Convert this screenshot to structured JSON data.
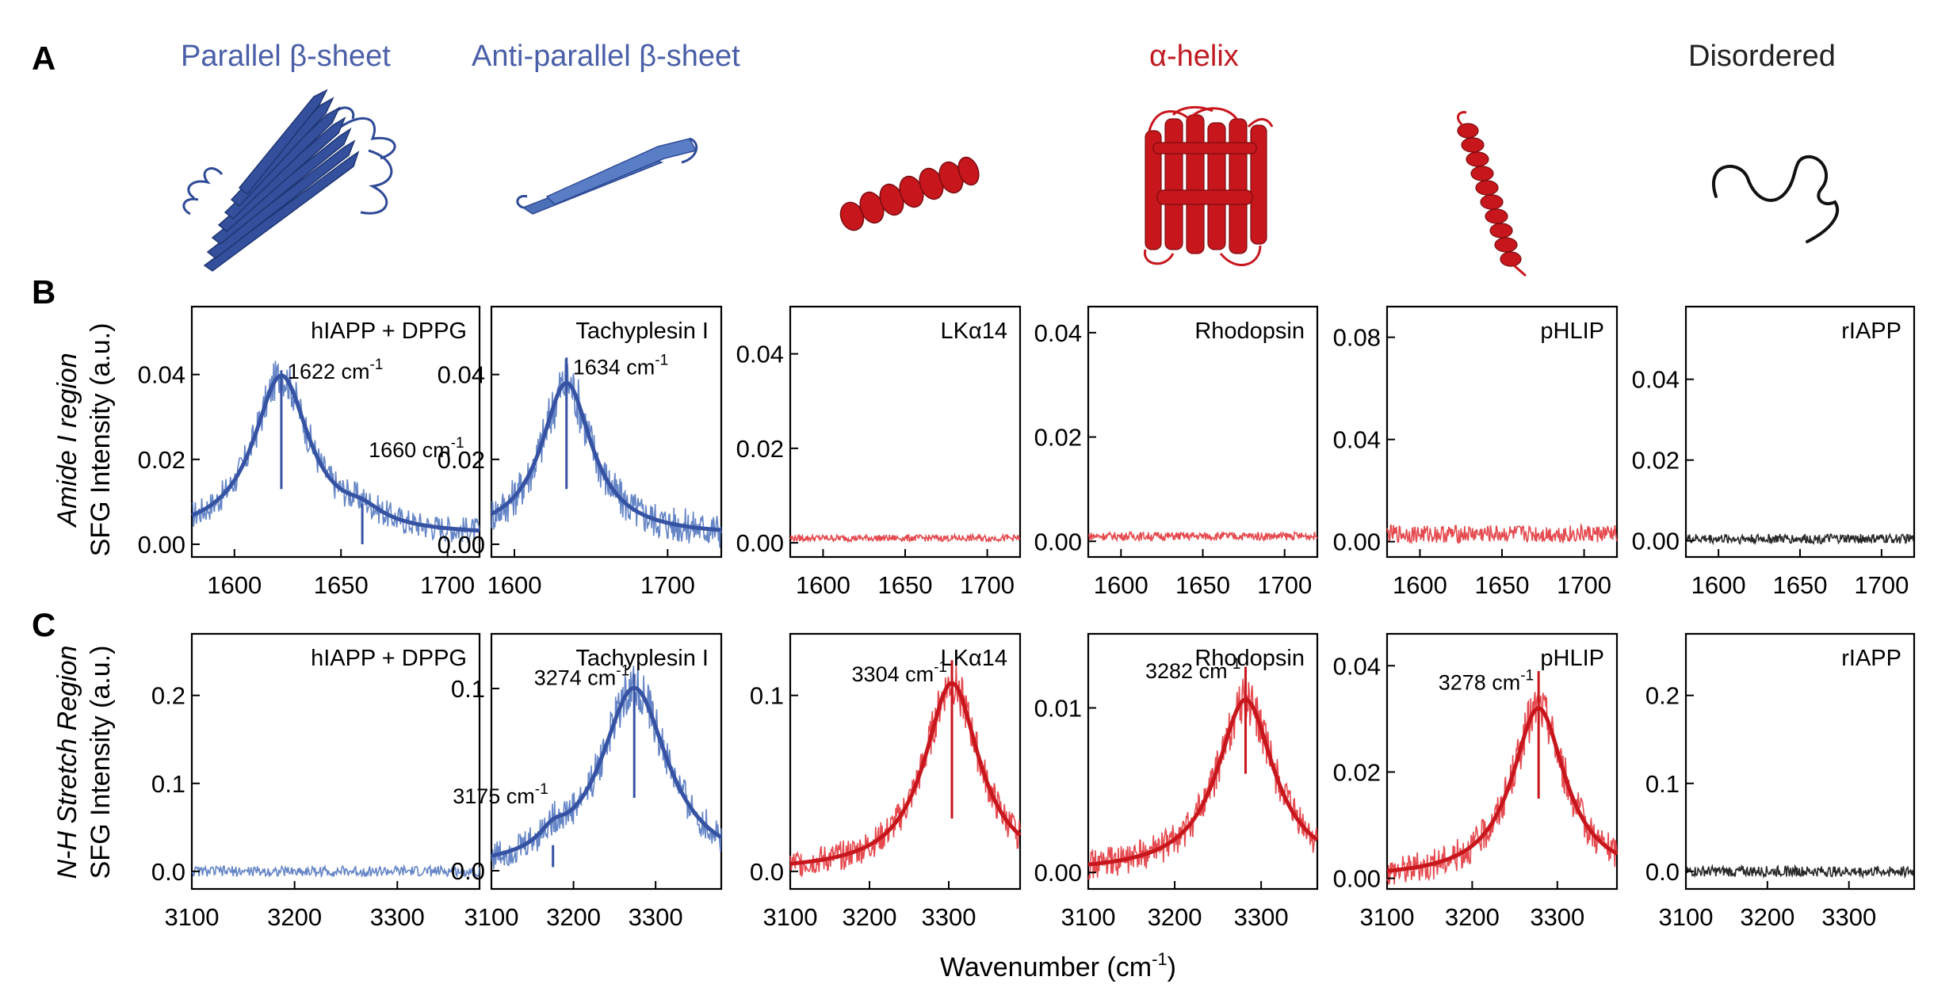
{
  "panels": {
    "a": "A",
    "b": "B",
    "c": "C"
  },
  "colors": {
    "blue": "#3653a3",
    "light_blue": "#5478c0",
    "red": "#c8161d",
    "light_red": "#e2363c",
    "black": "#111111",
    "title_blue": "#4a5fa8",
    "title_red": "#c01a22",
    "title_black": "#222222"
  },
  "structures": {
    "titles": [
      "Parallel β-sheet",
      "Anti-parallel β-sheet",
      "α-helix",
      "Disordered"
    ]
  },
  "row_labels": {
    "b_italic": "Amide I region",
    "b_axis": "SFG Intensity (a.u.)",
    "c_italic": "N-H Stretch Region",
    "c_axis": "SFG Intensity (a.u.)"
  },
  "xlabel": {
    "main": "Wavenumber (cm",
    "sup": "-1",
    "close": ")"
  },
  "chart_data": [
    {
      "type": "line",
      "row": "B",
      "label": "hIAPP + DPPG",
      "color": "blue",
      "xlim": [
        1580,
        1715
      ],
      "ylim": [
        -0.003,
        0.056
      ],
      "xticks": [
        1600,
        1650,
        1700
      ],
      "yticks": [
        0.0,
        0.02,
        0.04
      ],
      "decimals": 2,
      "peaks": [
        {
          "x": 1622,
          "h": 0.0375,
          "w": 16
        },
        {
          "x": 1660,
          "h": 0.003,
          "w": 12
        }
      ],
      "baseline": 0.002,
      "noise": 0.003,
      "annotations": [
        {
          "x": 1622,
          "text": "1622 cm",
          "sup": "-1",
          "ytop": 0.041,
          "ybot": 0.013,
          "labely": 0.039
        },
        {
          "x": 1660,
          "text": "1660 cm",
          "sup": "-1",
          "ytop": 0.0095,
          "ybot": 0.0,
          "labely": 0.0205
        }
      ]
    },
    {
      "type": "line",
      "row": "B",
      "label": "Tachyplesin I",
      "color": "blue",
      "xlim": [
        1585,
        1735
      ],
      "ylim": [
        -0.003,
        0.056
      ],
      "xticks": [
        1600,
        1700
      ],
      "yticks": [
        0.0,
        0.02,
        0.04
      ],
      "decimals": 2,
      "peaks": [
        {
          "x": 1634,
          "h": 0.036,
          "w": 20
        }
      ],
      "baseline": 0.002,
      "noise": 0.004,
      "annotations": [
        {
          "x": 1634,
          "text": "1634 cm",
          "sup": "-1",
          "ytop": 0.044,
          "ybot": 0.013,
          "labely": 0.04
        }
      ]
    },
    {
      "type": "line",
      "row": "B",
      "label": "LKα14",
      "color": "red",
      "xlim": [
        1580,
        1720
      ],
      "ylim": [
        -0.003,
        0.05
      ],
      "xticks": [
        1600,
        1650,
        1700
      ],
      "yticks": [
        0.0,
        0.02,
        0.04
      ],
      "decimals": 2,
      "peaks": [],
      "baseline": 0.001,
      "noise": 0.0007,
      "annotations": []
    },
    {
      "type": "line",
      "row": "B",
      "label": "Rhodopsin",
      "color": "red",
      "xlim": [
        1580,
        1720
      ],
      "ylim": [
        -0.003,
        0.045
      ],
      "xticks": [
        1600,
        1650,
        1700
      ],
      "yticks": [
        0.0,
        0.02,
        0.04
      ],
      "decimals": 2,
      "peaks": [],
      "baseline": 0.001,
      "noise": 0.0008,
      "annotations": []
    },
    {
      "type": "line",
      "row": "B",
      "label": "pHLIP",
      "color": "red",
      "xlim": [
        1580,
        1720
      ],
      "ylim": [
        -0.006,
        0.092
      ],
      "xticks": [
        1600,
        1650,
        1700
      ],
      "yticks": [
        0.0,
        0.04,
        0.08
      ],
      "decimals": 2,
      "peaks": [],
      "baseline": 0.003,
      "noise": 0.0035,
      "annotations": []
    },
    {
      "type": "line",
      "row": "B",
      "label": "rIAPP",
      "color": "black",
      "xlim": [
        1580,
        1720
      ],
      "ylim": [
        -0.004,
        0.058
      ],
      "xticks": [
        1600,
        1650,
        1700
      ],
      "yticks": [
        0.0,
        0.02,
        0.04
      ],
      "decimals": 2,
      "peaks": [],
      "baseline": 0.0005,
      "noise": 0.0012,
      "annotations": []
    },
    {
      "type": "line",
      "row": "C",
      "label": "hIAPP + DPPG",
      "color": "blue",
      "xlim": [
        3100,
        3380
      ],
      "ylim": [
        -0.02,
        0.27
      ],
      "xticks": [
        3100,
        3200,
        3300
      ],
      "yticks": [
        0.0,
        0.1,
        0.2
      ],
      "decimals": 1,
      "peaks": [],
      "baseline": 0.0,
      "noise": 0.006,
      "annotations": []
    },
    {
      "type": "line",
      "row": "C",
      "label": "Tachyplesin I",
      "color": "blue",
      "xlim": [
        3100,
        3380
      ],
      "ylim": [
        -0.01,
        0.13
      ],
      "xticks": [
        3100,
        3200,
        3300
      ],
      "yticks": [
        0.0,
        0.1
      ],
      "decimals": 1,
      "peaks": [
        {
          "x": 3274,
          "h": 0.1,
          "w": 50
        },
        {
          "x": 3175,
          "h": 0.008,
          "w": 20
        }
      ],
      "baseline": 0.0,
      "noise": 0.008,
      "annotations": [
        {
          "x": 3274,
          "text": "3274 cm",
          "sup": "-1",
          "ytop": 0.108,
          "ybot": 0.04,
          "labely": 0.102
        },
        {
          "x": 3175,
          "text": "3175 cm",
          "sup": "-1",
          "ytop": 0.014,
          "ybot": 0.002,
          "labely": 0.037
        }
      ]
    },
    {
      "type": "line",
      "row": "C",
      "label": "LKα14",
      "color": "red",
      "xlim": [
        3100,
        3390
      ],
      "ylim": [
        -0.01,
        0.135
      ],
      "xticks": [
        3100,
        3200,
        3300
      ],
      "yticks": [
        0.0,
        0.1
      ],
      "decimals": 1,
      "peaks": [
        {
          "x": 3304,
          "h": 0.107,
          "w": 42
        }
      ],
      "baseline": 0.0,
      "noise": 0.008,
      "annotations": [
        {
          "x": 3304,
          "text": "3304 cm",
          "sup": "-1",
          "ytop": 0.12,
          "ybot": 0.03,
          "labely": 0.108
        }
      ]
    },
    {
      "type": "line",
      "row": "C",
      "label": "Rhodopsin",
      "color": "red",
      "xlim": [
        3100,
        3365
      ],
      "ylim": [
        -0.001,
        0.0145
      ],
      "xticks": [
        3100,
        3200,
        3300
      ],
      "yticks": [
        0.0,
        0.01
      ],
      "decimals": 2,
      "peaks": [
        {
          "x": 3282,
          "h": 0.0105,
          "w": 40
        }
      ],
      "baseline": 0.0,
      "noise": 0.0009,
      "annotations": [
        {
          "x": 3282,
          "text": "3282 cm",
          "sup": "-1",
          "ytop": 0.0125,
          "ybot": 0.006,
          "labely": 0.0118
        }
      ]
    },
    {
      "type": "line",
      "row": "C",
      "label": "pHLIP",
      "color": "red",
      "xlim": [
        3100,
        3370
      ],
      "ylim": [
        -0.002,
        0.046
      ],
      "xticks": [
        3100,
        3200,
        3300
      ],
      "yticks": [
        0.0,
        0.02,
        0.04
      ],
      "decimals": 2,
      "peaks": [
        {
          "x": 3278,
          "h": 0.032,
          "w": 38
        }
      ],
      "baseline": 0.0,
      "noise": 0.0028,
      "annotations": [
        {
          "x": 3278,
          "text": "3278 cm",
          "sup": "-1",
          "ytop": 0.039,
          "ybot": 0.015,
          "labely": 0.0355
        }
      ]
    },
    {
      "type": "line",
      "row": "C",
      "label": "rIAPP",
      "color": "black",
      "xlim": [
        3100,
        3380
      ],
      "ylim": [
        -0.02,
        0.27
      ],
      "xticks": [
        3100,
        3200,
        3300
      ],
      "yticks": [
        0.0,
        0.1,
        0.2
      ],
      "decimals": 1,
      "peaks": [],
      "baseline": 0.0,
      "noise": 0.006,
      "annotations": []
    }
  ]
}
